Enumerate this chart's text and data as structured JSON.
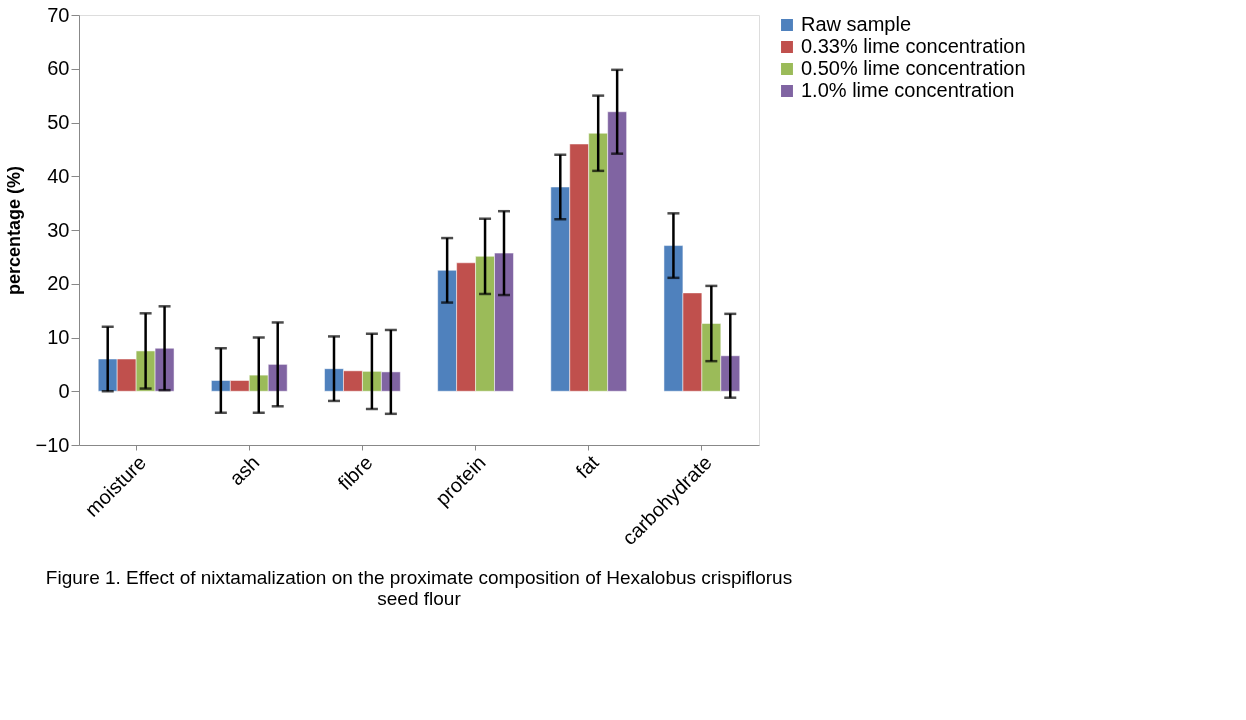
{
  "chart_data": {
    "type": "bar",
    "ylabel": "percentage (%)",
    "categories": [
      "moisture",
      "ash",
      "fibre",
      "protein",
      "fat",
      "carbohydrate"
    ],
    "series": [
      {
        "name": "Raw sample",
        "color": "#4f81bd",
        "values": [
          6,
          2,
          4.2,
          22.5,
          38,
          27.1
        ],
        "errors": [
          6,
          6,
          6,
          6,
          6,
          6
        ]
      },
      {
        "name": "0.33% lime concentration",
        "color": "#c0504d",
        "values": [
          6,
          2,
          3.8,
          23.9,
          46,
          18.3
        ]
      },
      {
        "name": "0.50% lime concentration",
        "color": "#9bbb59",
        "values": [
          7.5,
          3,
          3.7,
          25.1,
          48,
          12.6
        ],
        "errors": [
          7,
          7,
          7,
          7,
          7,
          7
        ]
      },
      {
        "name": "1.0% lime concentration",
        "color": "#8064a2",
        "values": [
          8,
          5,
          3.6,
          25.7,
          52,
          6.6
        ],
        "errors": [
          7.8,
          7.8,
          7.8,
          7.8,
          7.8,
          7.8
        ]
      }
    ],
    "ylim": [
      -10,
      70
    ],
    "yticks": [
      -10,
      0,
      10,
      20,
      30,
      40,
      50,
      60,
      70
    ],
    "grid": false,
    "legend": "right",
    "annotations": [
      "Figure 1. Effect of nixtamalization on the proximate composition of Hexalobus crispiflorus seed flour"
    ]
  }
}
